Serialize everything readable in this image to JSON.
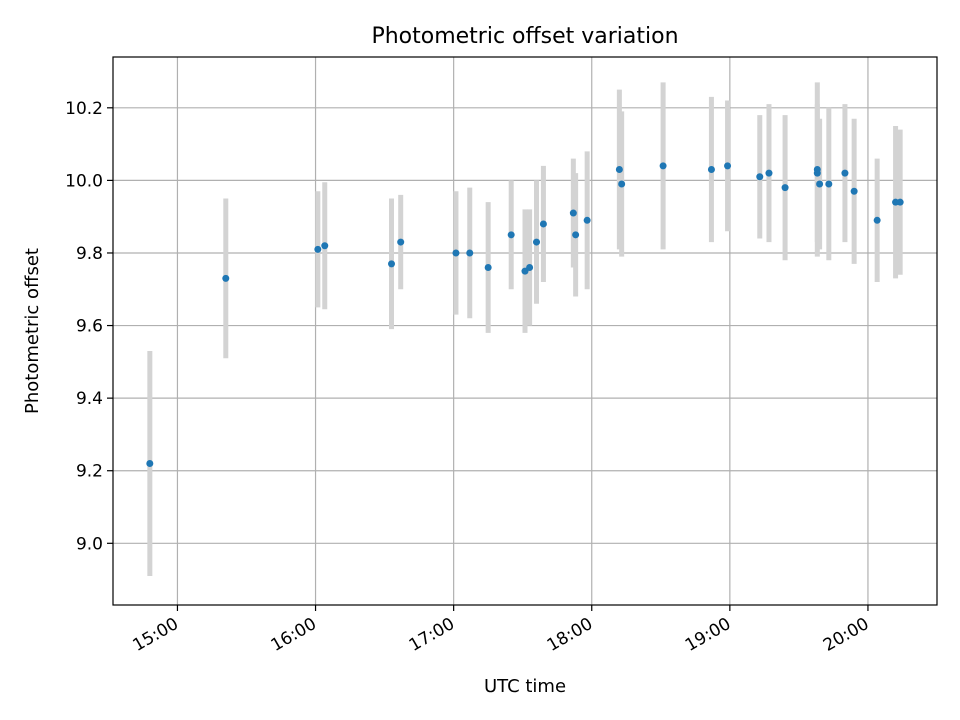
{
  "chart_data": {
    "type": "scatter",
    "title": "Photometric offset variation",
    "xlabel": "UTC time",
    "ylabel": "Photometric offset",
    "x_axis_kind": "time",
    "xlim": [
      "14:32",
      "20:30"
    ],
    "ylim": [
      8.83,
      10.34
    ],
    "x_ticks": [
      "15:00",
      "16:00",
      "17:00",
      "18:00",
      "19:00",
      "20:00"
    ],
    "y_ticks": [
      9.0,
      9.2,
      9.4,
      9.6,
      9.8,
      10.0,
      10.2
    ],
    "y_tick_labels": [
      "9.0",
      "9.2",
      "9.4",
      "9.6",
      "9.8",
      "10.0",
      "10.2"
    ],
    "grid": true,
    "series": [
      {
        "marker_color": "#1f77b4",
        "errorbar_color": "#d3d3d3",
        "points": [
          {
            "x": "14:48",
            "y": 9.22,
            "err": 0.31
          },
          {
            "x": "15:21",
            "y": 9.73,
            "err": 0.22
          },
          {
            "x": "16:01",
            "y": 9.81,
            "err": 0.16
          },
          {
            "x": "16:04",
            "y": 9.82,
            "err": 0.175
          },
          {
            "x": "16:33",
            "y": 9.77,
            "err": 0.18
          },
          {
            "x": "16:37",
            "y": 9.83,
            "err": 0.13
          },
          {
            "x": "17:01",
            "y": 9.8,
            "err": 0.17
          },
          {
            "x": "17:07",
            "y": 9.8,
            "err": 0.18
          },
          {
            "x": "17:15",
            "y": 9.76,
            "err": 0.18
          },
          {
            "x": "17:25",
            "y": 9.85,
            "err": 0.15
          },
          {
            "x": "17:31",
            "y": 9.75,
            "err": 0.17
          },
          {
            "x": "17:33",
            "y": 9.76,
            "err": 0.16
          },
          {
            "x": "17:36",
            "y": 9.83,
            "err": 0.17
          },
          {
            "x": "17:39",
            "y": 9.88,
            "err": 0.16
          },
          {
            "x": "17:52",
            "y": 9.91,
            "err": 0.15
          },
          {
            "x": "17:53",
            "y": 9.85,
            "err": 0.17
          },
          {
            "x": "17:58",
            "y": 9.89,
            "err": 0.19
          },
          {
            "x": "18:12",
            "y": 10.03,
            "err": 0.22
          },
          {
            "x": "18:13",
            "y": 9.99,
            "err": 0.2
          },
          {
            "x": "18:31",
            "y": 10.04,
            "err": 0.23
          },
          {
            "x": "18:52",
            "y": 10.03,
            "err": 0.2
          },
          {
            "x": "18:59",
            "y": 10.04,
            "err": 0.18
          },
          {
            "x": "19:13",
            "y": 10.01,
            "err": 0.17
          },
          {
            "x": "19:17",
            "y": 10.02,
            "err": 0.19
          },
          {
            "x": "19:24",
            "y": 9.98,
            "err": 0.2
          },
          {
            "x": "19:38",
            "y": 10.02,
            "err": 0.19
          },
          {
            "x": "19:38",
            "y": 10.03,
            "err": 0.24
          },
          {
            "x": "19:39",
            "y": 9.99,
            "err": 0.18
          },
          {
            "x": "19:43",
            "y": 9.99,
            "err": 0.21
          },
          {
            "x": "19:50",
            "y": 10.02,
            "err": 0.19
          },
          {
            "x": "19:54",
            "y": 9.97,
            "err": 0.2
          },
          {
            "x": "20:04",
            "y": 9.89,
            "err": 0.17
          },
          {
            "x": "20:12",
            "y": 9.94,
            "err": 0.21
          },
          {
            "x": "20:14",
            "y": 9.94,
            "err": 0.2
          }
        ]
      }
    ]
  }
}
